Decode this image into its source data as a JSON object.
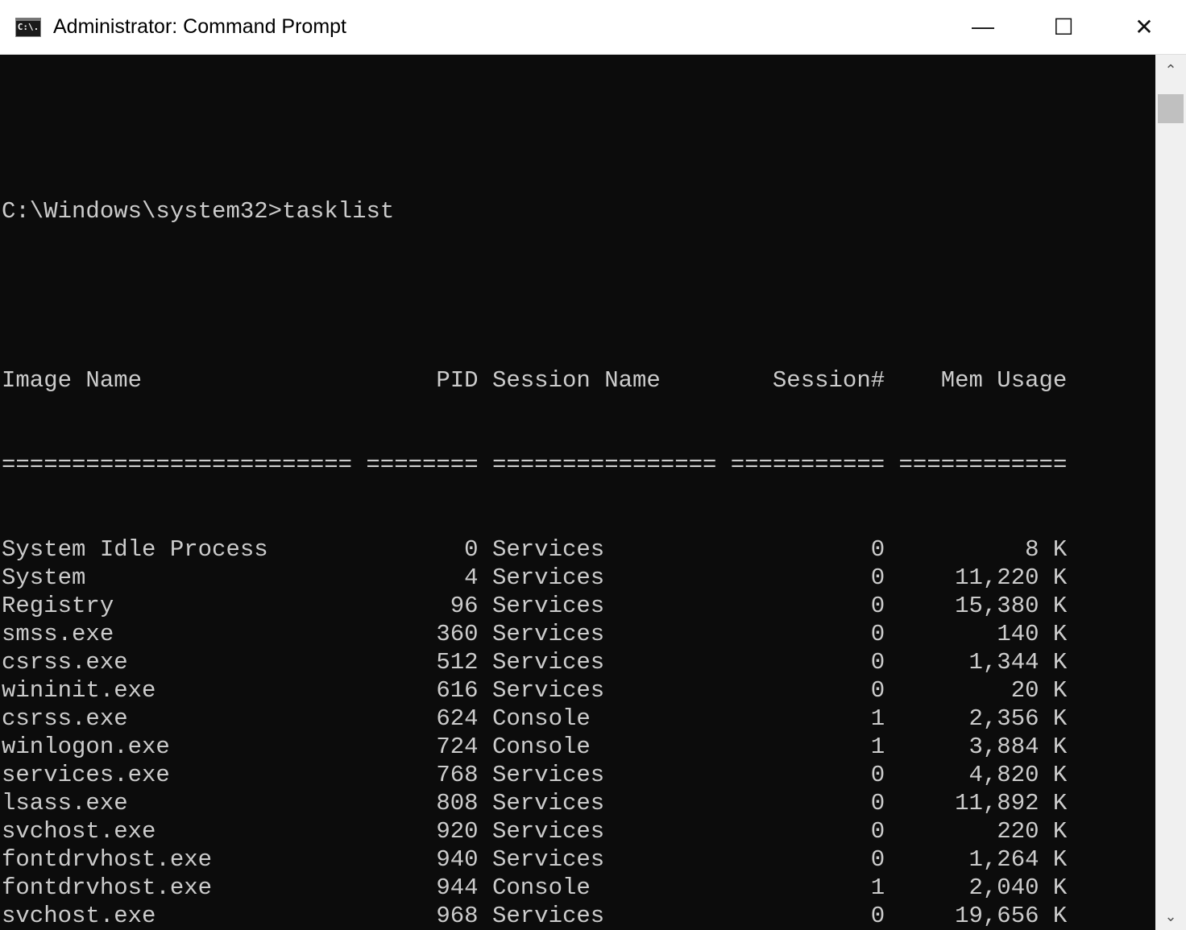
{
  "window": {
    "title": "Administrator: Command Prompt",
    "icon": "cmd-icon",
    "icon_text": "C:\\.",
    "minimize": "—",
    "maximize": "☐",
    "close": "✕"
  },
  "console": {
    "prompt": "C:\\Windows\\system32>tasklist",
    "headers": [
      "Image Name",
      "PID",
      "Session Name",
      "Session#",
      "Mem Usage"
    ],
    "separators": [
      "=========================",
      "========",
      "================",
      "===========",
      "============"
    ],
    "rows": [
      [
        "System Idle Process",
        "0",
        "Services",
        "0",
        "8 K"
      ],
      [
        "System",
        "4",
        "Services",
        "0",
        "11,220 K"
      ],
      [
        "Registry",
        "96",
        "Services",
        "0",
        "15,380 K"
      ],
      [
        "smss.exe",
        "360",
        "Services",
        "0",
        "140 K"
      ],
      [
        "csrss.exe",
        "512",
        "Services",
        "0",
        "1,344 K"
      ],
      [
        "wininit.exe",
        "616",
        "Services",
        "0",
        "20 K"
      ],
      [
        "csrss.exe",
        "624",
        "Console",
        "1",
        "2,356 K"
      ],
      [
        "winlogon.exe",
        "724",
        "Console",
        "1",
        "3,884 K"
      ],
      [
        "services.exe",
        "768",
        "Services",
        "0",
        "4,820 K"
      ],
      [
        "lsass.exe",
        "808",
        "Services",
        "0",
        "11,892 K"
      ],
      [
        "svchost.exe",
        "920",
        "Services",
        "0",
        "220 K"
      ],
      [
        "fontdrvhost.exe",
        "940",
        "Services",
        "0",
        "1,264 K"
      ],
      [
        "fontdrvhost.exe",
        "944",
        "Console",
        "1",
        "2,040 K"
      ],
      [
        "svchost.exe",
        "968",
        "Services",
        "0",
        "19,656 K"
      ]
    ]
  },
  "scrollbar": {
    "up": "⌃",
    "down": "⌄",
    "position_percent": 0
  }
}
